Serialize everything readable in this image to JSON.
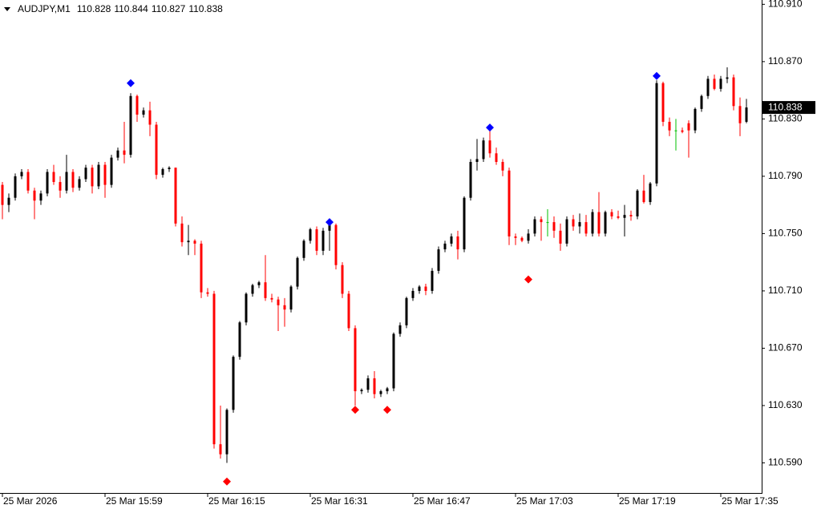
{
  "chart_data": {
    "type": "candlestick",
    "symbol": "AUDJPY,M1",
    "header_ohlc": [
      110.828,
      110.844,
      110.827,
      110.838
    ],
    "last_price": 110.838,
    "up_color": "#000000",
    "down_color": "#ff0000",
    "doji_color": "#00c000",
    "ylim": [
      110.569,
      110.913
    ],
    "yticks": [
      {
        "value": 110.91,
        "label": "110.910"
      },
      {
        "value": 110.87,
        "label": "110.870"
      },
      {
        "value": 110.83,
        "label": "110.830"
      },
      {
        "value": 110.79,
        "label": "110.790"
      },
      {
        "value": 110.75,
        "label": "110.750"
      },
      {
        "value": 110.71,
        "label": "110.710"
      },
      {
        "value": 110.67,
        "label": "110.670"
      },
      {
        "value": 110.63,
        "label": "110.630"
      },
      {
        "value": 110.59,
        "label": "110.590"
      }
    ],
    "categories": [
      "25 Mar 2026",
      null,
      null,
      null,
      null,
      null,
      null,
      null,
      null,
      null,
      null,
      null,
      null,
      null,
      null,
      null,
      "25 Mar 15:59",
      null,
      null,
      null,
      null,
      null,
      null,
      null,
      null,
      null,
      null,
      null,
      null,
      null,
      null,
      null,
      "25 Mar 16:15",
      null,
      null,
      null,
      null,
      null,
      null,
      null,
      null,
      null,
      null,
      null,
      null,
      null,
      null,
      null,
      "25 Mar 16:31",
      null,
      null,
      null,
      null,
      null,
      null,
      null,
      null,
      null,
      null,
      null,
      null,
      null,
      null,
      null,
      "25 Mar 16:47",
      null,
      null,
      null,
      null,
      null,
      null,
      null,
      null,
      null,
      null,
      null,
      null,
      null,
      null,
      null,
      "25 Mar 17:03",
      null,
      null,
      null,
      null,
      null,
      null,
      null,
      null,
      null,
      null,
      null,
      null,
      null,
      null,
      null,
      "25 Mar 17:19",
      null,
      null,
      null,
      null,
      null,
      null,
      null,
      null,
      null,
      null,
      null,
      null,
      null,
      null,
      null,
      "25 Mar 17:35",
      null,
      null,
      null,
      null
    ],
    "candles": [
      [
        110.784,
        110.786,
        110.76,
        110.77
      ],
      [
        110.77,
        110.778,
        110.765,
        110.775
      ],
      [
        110.775,
        110.792,
        110.773,
        110.79
      ],
      [
        110.79,
        110.795,
        110.788,
        110.793
      ],
      [
        110.793,
        110.795,
        110.778,
        110.78
      ],
      [
        110.78,
        110.782,
        110.76,
        110.773
      ],
      [
        110.773,
        110.78,
        110.77,
        110.778
      ],
      [
        110.778,
        110.795,
        110.776,
        110.793
      ],
      [
        110.793,
        110.798,
        110.784,
        110.786
      ],
      [
        110.786,
        110.79,
        110.775,
        110.78
      ],
      [
        110.78,
        110.805,
        110.778,
        110.793
      ],
      [
        110.793,
        110.795,
        110.779,
        110.782
      ],
      [
        110.782,
        110.79,
        110.78,
        110.788
      ],
      [
        110.788,
        110.798,
        110.786,
        110.796
      ],
      [
        110.796,
        110.798,
        110.778,
        110.783
      ],
      [
        110.783,
        110.8,
        110.781,
        110.798
      ],
      [
        110.798,
        110.8,
        110.775,
        110.784
      ],
      [
        110.784,
        110.805,
        110.782,
        110.803
      ],
      [
        110.803,
        110.81,
        110.801,
        110.808
      ],
      [
        110.808,
        110.828,
        110.799,
        110.805
      ],
      [
        110.805,
        110.848,
        110.803,
        110.846
      ],
      [
        110.846,
        110.847,
        110.828,
        110.833
      ],
      [
        110.833,
        110.838,
        110.831,
        110.836
      ],
      [
        110.836,
        110.842,
        110.818,
        110.826
      ],
      [
        110.826,
        110.828,
        110.788,
        110.791
      ],
      [
        110.791,
        110.796,
        110.789,
        110.795
      ],
      [
        110.795,
        110.797,
        110.793,
        110.796
      ],
      [
        110.796,
        110.796,
        110.755,
        110.757
      ],
      [
        110.757,
        110.762,
        110.741,
        110.744
      ],
      [
        110.744,
        110.756,
        110.735,
        110.745
      ],
      [
        110.745,
        110.746,
        110.735,
        110.743
      ],
      [
        110.743,
        110.745,
        110.705,
        110.709
      ],
      [
        110.709,
        110.712,
        110.706,
        110.708
      ],
      [
        110.708,
        110.71,
        110.6,
        110.603
      ],
      [
        110.603,
        110.63,
        110.593,
        110.596
      ],
      [
        110.596,
        110.628,
        110.59,
        110.627
      ],
      [
        110.627,
        110.665,
        110.625,
        110.664
      ],
      [
        110.664,
        110.689,
        110.662,
        110.688
      ],
      [
        110.688,
        110.709,
        110.686,
        110.708
      ],
      [
        110.708,
        110.715,
        110.706,
        110.714
      ],
      [
        110.714,
        110.717,
        110.712,
        110.716
      ],
      [
        110.716,
        110.735,
        110.703,
        110.705
      ],
      [
        110.705,
        110.708,
        110.702,
        110.704
      ],
      [
        110.704,
        110.706,
        110.682,
        110.7
      ],
      [
        110.7,
        110.705,
        110.685,
        110.697
      ],
      [
        110.697,
        110.714,
        110.695,
        110.713
      ],
      [
        110.713,
        110.734,
        110.711,
        110.733
      ],
      [
        110.733,
        110.746,
        110.731,
        110.745
      ],
      [
        110.745,
        110.754,
        110.743,
        110.753
      ],
      [
        110.753,
        110.755,
        110.735,
        110.738
      ],
      [
        110.738,
        110.754,
        110.735,
        110.752
      ],
      [
        110.752,
        110.759,
        110.738,
        110.756
      ],
      [
        110.756,
        110.757,
        110.725,
        110.728
      ],
      [
        110.728,
        110.73,
        110.705,
        110.708
      ],
      [
        110.708,
        110.71,
        110.682,
        110.684
      ],
      [
        110.684,
        110.686,
        110.63,
        110.64
      ],
      [
        110.64,
        110.642,
        110.638,
        110.641
      ],
      [
        110.641,
        110.651,
        110.639,
        110.649
      ],
      [
        110.649,
        110.654,
        110.635,
        110.638
      ],
      [
        110.638,
        110.641,
        110.636,
        110.64
      ],
      [
        110.64,
        110.643,
        110.638,
        110.642
      ],
      [
        110.642,
        110.681,
        110.64,
        110.68
      ],
      [
        110.68,
        110.688,
        110.678,
        110.686
      ],
      [
        110.686,
        110.706,
        110.684,
        110.705
      ],
      [
        110.705,
        110.712,
        110.703,
        110.71
      ],
      [
        110.71,
        110.714,
        110.708,
        110.713
      ],
      [
        110.713,
        110.715,
        110.707,
        110.71
      ],
      [
        110.71,
        110.726,
        110.708,
        110.724
      ],
      [
        110.724,
        110.741,
        110.722,
        110.739
      ],
      [
        110.739,
        110.745,
        110.737,
        110.743
      ],
      [
        110.743,
        110.75,
        110.741,
        110.748
      ],
      [
        110.748,
        110.752,
        110.732,
        110.739
      ],
      [
        110.739,
        110.776,
        110.737,
        110.775
      ],
      [
        110.775,
        110.802,
        110.773,
        110.8
      ],
      [
        110.8,
        110.816,
        110.794,
        110.802
      ],
      [
        110.802,
        110.817,
        110.8,
        110.815
      ],
      [
        110.815,
        110.824,
        110.803,
        110.806
      ],
      [
        110.806,
        110.81,
        110.798,
        110.8
      ],
      [
        110.8,
        110.802,
        110.79,
        110.794
      ],
      [
        110.794,
        110.796,
        110.742,
        110.748
      ],
      [
        110.748,
        110.75,
        110.742,
        110.747
      ],
      [
        110.747,
        110.748,
        110.744,
        110.745
      ],
      [
        110.745,
        110.753,
        110.743,
        110.75
      ],
      [
        110.75,
        110.762,
        110.748,
        110.76
      ],
      [
        110.76,
        110.762,
        110.745,
        110.758
      ],
      [
        110.758,
        110.767,
        110.748,
        110.758
      ],
      [
        110.758,
        110.762,
        110.747,
        110.752
      ],
      [
        110.752,
        110.757,
        110.738,
        110.743
      ],
      [
        110.743,
        110.762,
        110.741,
        110.76
      ],
      [
        110.76,
        110.763,
        110.752,
        110.755
      ],
      [
        110.755,
        110.764,
        110.75,
        110.758
      ],
      [
        110.758,
        110.763,
        110.748,
        110.75
      ],
      [
        110.75,
        110.767,
        110.748,
        110.765
      ],
      [
        110.765,
        110.779,
        110.748,
        110.75
      ],
      [
        110.75,
        110.766,
        110.748,
        110.765
      ],
      [
        110.765,
        110.767,
        110.76,
        110.762
      ],
      [
        110.762,
        110.766,
        110.76,
        110.761
      ],
      [
        110.761,
        110.77,
        110.748,
        110.763
      ],
      [
        110.763,
        110.766,
        110.759,
        110.762
      ],
      [
        110.762,
        110.781,
        110.76,
        110.78
      ],
      [
        110.78,
        110.791,
        110.771,
        110.772
      ],
      [
        110.772,
        110.786,
        110.77,
        110.785
      ],
      [
        110.785,
        110.857,
        110.783,
        110.855
      ],
      [
        110.855,
        110.856,
        110.825,
        110.828
      ],
      [
        110.828,
        110.831,
        110.818,
        110.822
      ],
      [
        110.822,
        110.83,
        110.808,
        110.822
      ],
      [
        110.822,
        110.824,
        110.82,
        110.821
      ],
      [
        110.827,
        110.829,
        110.803,
        110.822
      ],
      [
        110.822,
        110.838,
        110.82,
        110.837
      ],
      [
        110.837,
        110.847,
        110.835,
        110.846
      ],
      [
        110.846,
        110.86,
        110.844,
        110.858
      ],
      [
        110.858,
        110.861,
        110.85,
        110.851
      ],
      [
        110.851,
        110.86,
        110.849,
        110.858
      ],
      [
        110.858,
        110.866,
        110.855,
        110.859
      ],
      [
        110.859,
        110.861,
        110.836,
        110.839
      ],
      [
        110.839,
        110.845,
        110.818,
        110.827
      ],
      [
        110.828,
        110.844,
        110.827,
        110.838
      ]
    ],
    "markers": [
      {
        "index": 20,
        "value": 110.855,
        "color": "#0000ff"
      },
      {
        "index": 51,
        "value": 110.758,
        "color": "#0000ff"
      },
      {
        "index": 76,
        "value": 110.824,
        "color": "#0000ff"
      },
      {
        "index": 102,
        "value": 110.86,
        "color": "#0000ff"
      },
      {
        "index": 35,
        "value": 110.577,
        "color": "#ff0000"
      },
      {
        "index": 55,
        "value": 110.627,
        "color": "#ff0000"
      },
      {
        "index": 60,
        "value": 110.627,
        "color": "#ff0000"
      },
      {
        "index": 82,
        "value": 110.718,
        "color": "#ff0000"
      }
    ]
  }
}
